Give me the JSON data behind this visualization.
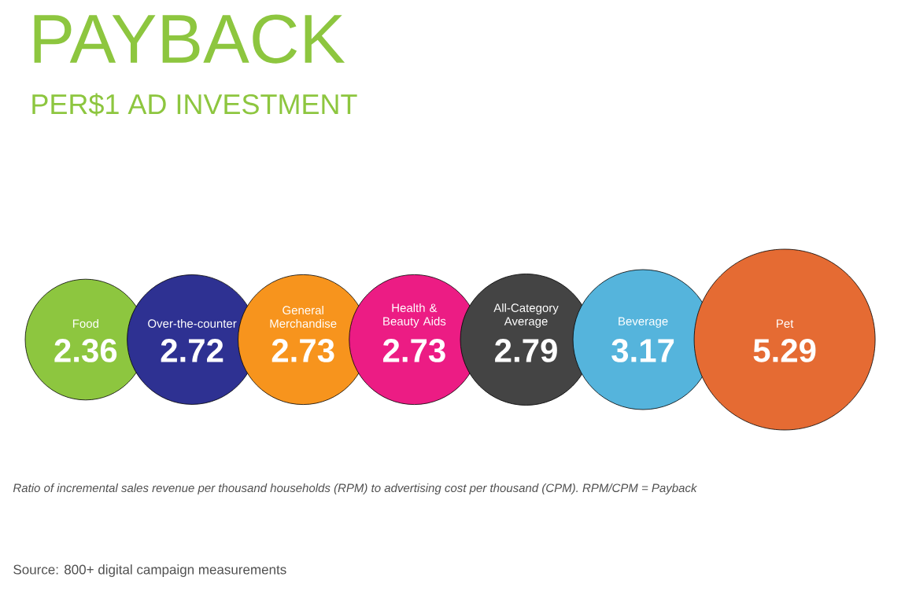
{
  "chart_data": {
    "type": "other",
    "title": "PAYBACK",
    "subtitle": "PER$1 AD INVESTMENT",
    "categories": [
      "Food",
      "Over-the-counter",
      "General Merchandise",
      "Health & Beauty Aids",
      "All-Category Average",
      "Beverage",
      "Pet"
    ],
    "values": [
      2.36,
      2.72,
      2.73,
      2.73,
      2.79,
      3.17,
      5.29
    ],
    "colors": [
      "#8dc63f",
      "#2e3192",
      "#f7941d",
      "#ec1c84",
      "#444444",
      "#55b4dc",
      "#e56b33"
    ],
    "data_labels": true,
    "annotations": [
      "Ratio of incremental sales revenue per thousand households (RPM) to advertising cost per thousand (CPM).  RPM/CPM = Payback",
      "Source: 800+ digital campaign measurements"
    ]
  }
}
